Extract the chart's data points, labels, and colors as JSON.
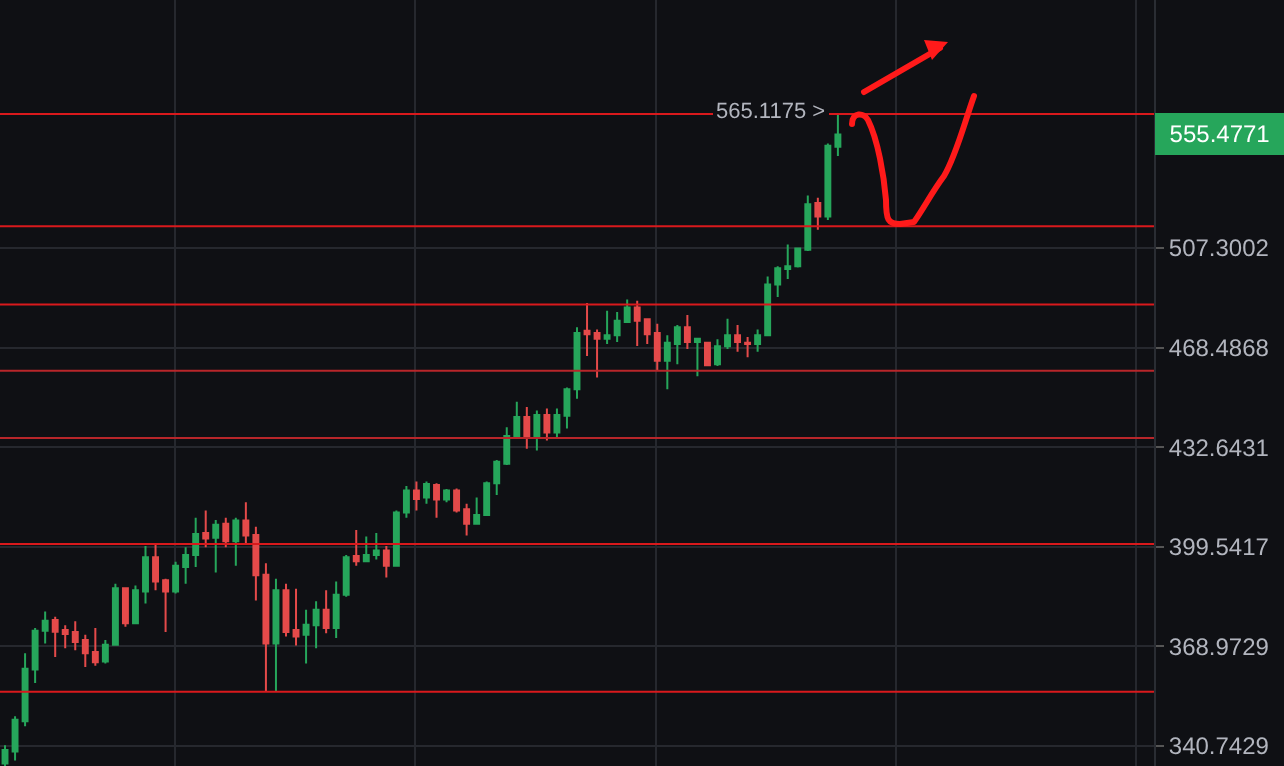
{
  "chart_data": {
    "type": "candlestick",
    "categories": [
      null,
      null,
      null,
      null,
      null,
      null,
      null,
      null,
      null,
      null,
      null,
      null,
      null,
      null,
      null,
      null,
      null,
      null,
      null,
      null,
      null,
      null,
      null,
      null,
      null,
      null,
      null,
      null,
      null,
      null,
      null,
      null,
      null,
      null,
      null,
      null,
      null,
      null,
      null,
      null,
      null,
      null,
      null,
      null,
      null,
      null,
      null,
      null,
      null,
      null,
      null,
      null,
      null,
      null,
      null,
      null,
      null,
      null,
      null,
      null,
      null,
      null,
      null,
      null,
      null,
      null,
      null,
      null,
      null,
      null,
      null,
      null,
      null,
      null,
      null,
      null,
      null,
      null,
      null,
      null,
      null,
      null,
      null,
      null,
      null,
      null,
      null,
      null,
      null,
      null,
      null,
      null,
      null,
      null,
      null,
      null,
      null,
      null,
      null,
      null,
      null,
      null,
      null,
      null,
      null,
      null,
      null,
      null,
      null,
      null,
      null,
      null,
      null,
      null,
      null
    ],
    "ohlc": [
      [
        336.0,
        340.9,
        335.1,
        339.6
      ],
      [
        339.2,
        348.9,
        336.8,
        347.9
      ],
      [
        347.5,
        366.9,
        346.1,
        362.4
      ],
      [
        362.2,
        374.4,
        358.3,
        373.6
      ],
      [
        373.6,
        379.4,
        369.8,
        376.6
      ],
      [
        376.8,
        377.8,
        365.8,
        373.3
      ],
      [
        373.8,
        375.2,
        368.4,
        372.6
      ],
      [
        373.2,
        376.4,
        367.8,
        370.2
      ],
      [
        370.8,
        372.4,
        362.9,
        366.9
      ],
      [
        367.3,
        374.4,
        363.3,
        364.3
      ],
      [
        364.5,
        370.8,
        363.9,
        369.4
      ],
      [
        369.4,
        387.9,
        369.2,
        386.5
      ],
      [
        386.5,
        386.8,
        374.8,
        375.8
      ],
      [
        375.8,
        387.3,
        375.8,
        385.9
      ],
      [
        385.5,
        399.8,
        381.8,
        396.2
      ],
      [
        396.2,
        400.5,
        385.9,
        388.6
      ],
      [
        389.0,
        389.4,
        373.2,
        385.5
      ],
      [
        385.5,
        394.8,
        384.9,
        393.5
      ],
      [
        393.1,
        399.4,
        387.9,
        396.9
      ],
      [
        396.9,
        408.9,
        393.1,
        403.6
      ],
      [
        403.9,
        411.3,
        399.4,
        402.2
      ],
      [
        402.4,
        408.2,
        391.4,
        406.6
      ],
      [
        406.9,
        408.9,
        399.4,
        401.3
      ],
      [
        401.3,
        408.9,
        393.5,
        408.0
      ],
      [
        408.0,
        414.0,
        400.4,
        403.1
      ],
      [
        403.3,
        406.0,
        382.7,
        390.5
      ],
      [
        390.7,
        394.3,
        355.8,
        369.8
      ],
      [
        369.8,
        389.4,
        355.8,
        385.9
      ],
      [
        385.9,
        387.9,
        371.9,
        373.2
      ],
      [
        373.8,
        386.3,
        369.2,
        371.9
      ],
      [
        372.4,
        379.9,
        363.9,
        375.4
      ],
      [
        375.2,
        382.5,
        368.4,
        379.9
      ],
      [
        379.9,
        385.9,
        372.8,
        374.4
      ],
      [
        374.4,
        388.6,
        371.4,
        384.5
      ],
      [
        384.5,
        396.9,
        383.9,
        396.2
      ],
      [
        396.6,
        404.9,
        393.5,
        394.9
      ],
      [
        394.9,
        402.8,
        394.9,
        396.9
      ],
      [
        396.9,
        403.9,
        395.5,
        398.3
      ],
      [
        398.3,
        399.8,
        389.8,
        393.5
      ],
      [
        393.5,
        411.3,
        393.5,
        410.6
      ],
      [
        410.6,
        419.4,
        408.9,
        417.9
      ],
      [
        417.9,
        420.9,
        411.3,
        415.1
      ],
      [
        415.6,
        420.9,
        413.5,
        420.1
      ],
      [
        419.7,
        420.3,
        408.9,
        414.9
      ],
      [
        414.9,
        418.4,
        414.0,
        417.9
      ],
      [
        417.9,
        418.6,
        410.6,
        411.3
      ],
      [
        411.7,
        413.5,
        403.1,
        406.9
      ],
      [
        406.9,
        415.6,
        406.9,
        409.8
      ],
      [
        409.8,
        420.9,
        409.5,
        420.3
      ],
      [
        420.3,
        428.2,
        416.4,
        427.6
      ],
      [
        426.9,
        439.6,
        426.5,
        436.5
      ],
      [
        436.1,
        448.6,
        435.6,
        443.2
      ],
      [
        443.2,
        446.7,
        432.1,
        436.1
      ],
      [
        436.1,
        445.5,
        431.5,
        443.9
      ],
      [
        443.9,
        446.2,
        434.9,
        437.7
      ],
      [
        437.7,
        446.2,
        435.6,
        443.9
      ],
      [
        443.6,
        453.8,
        439.1,
        453.1
      ],
      [
        453.1,
        476.1,
        449.7,
        474.0
      ],
      [
        474.8,
        485.5,
        465.3,
        473.5
      ],
      [
        474.0,
        475.3,
        457.4,
        471.8
      ],
      [
        471.8,
        482.5,
        469.8,
        473.1
      ],
      [
        473.1,
        482.0,
        470.6,
        478.6
      ],
      [
        478.1,
        486.8,
        478.1,
        483.7
      ],
      [
        483.7,
        486.3,
        469.1,
        478.6
      ],
      [
        479.2,
        479.2,
        469.8,
        473.5
      ],
      [
        474.0,
        477.5,
        459.8,
        463.6
      ],
      [
        463.6,
        473.1,
        453.1,
        470.3
      ],
      [
        469.8,
        477.0,
        462.3,
        476.1
      ],
      [
        476.1,
        480.8,
        467.9,
        470.6
      ],
      [
        470.6,
        471.8,
        457.9,
        471.8
      ],
      [
        470.3,
        470.3,
        461.9,
        461.9
      ],
      [
        462.3,
        471.6,
        461.6,
        469.0
      ],
      [
        469.0,
        479.4,
        467.9,
        473.1
      ],
      [
        473.1,
        477.0,
        466.9,
        470.6
      ],
      [
        470.3,
        472.4,
        464.9,
        469.8
      ],
      [
        469.8,
        475.3,
        466.9,
        473.1
      ],
      [
        473.1,
        495.9,
        472.8,
        492.7
      ],
      [
        492.7,
        499.9,
        487.8,
        499.1
      ],
      [
        498.8,
        508.7,
        494.9,
        499.9
      ],
      [
        499.9,
        507.4,
        499.4,
        507.1
      ],
      [
        506.6,
        529.0,
        506.1,
        525.3
      ],
      [
        525.9,
        528.1,
        514.7,
        520.2
      ],
      [
        520.2,
        551.5,
        518.8,
        550.5
      ],
      [
        550.0,
        565.1175,
        546.0,
        555.4771
      ],
      null,
      null,
      null,
      null,
      null,
      null,
      null,
      null,
      null,
      null,
      null,
      null,
      null,
      null,
      null,
      null,
      null,
      null,
      null,
      null,
      null,
      null,
      null,
      null,
      null,
      null,
      null,
      null,
      null,
      null,
      null
    ],
    "colors": [
      "#26a65b",
      "#26a65b",
      "#26a65b",
      "#26a65b",
      "#26a65b",
      "#e44a4a",
      "#e44a4a",
      "#e44a4a",
      "#e44a4a",
      "#e44a4a",
      "#26a65b",
      "#26a65b",
      "#e44a4a",
      "#26a65b",
      "#26a65b",
      "#e44a4a",
      "#e44a4a",
      "#26a65b",
      "#26a65b",
      "#26a65b",
      "#e44a4a",
      "#26a65b",
      "#e44a4a",
      "#26a65b",
      "#e44a4a",
      "#e44a4a",
      "#e44a4a",
      "#26a65b",
      "#e44a4a",
      "#e44a4a",
      "#26a65b",
      "#26a65b",
      "#e44a4a",
      "#26a65b",
      "#26a65b",
      "#e44a4a",
      "#26a65b",
      "#26a65b",
      "#e44a4a",
      "#26a65b",
      "#26a65b",
      "#e44a4a",
      "#26a65b",
      "#e44a4a",
      "#26a65b",
      "#e44a4a",
      "#e44a4a",
      "#26a65b",
      "#26a65b",
      "#26a65b",
      "#26a65b",
      "#26a65b",
      "#e44a4a",
      "#26a65b",
      "#e44a4a",
      "#26a65b",
      "#26a65b",
      "#26a65b",
      "#e44a4a",
      "#e44a4a",
      "#26a65b",
      "#26a65b",
      "#26a65b",
      "#e44a4a",
      "#e44a4a",
      "#e44a4a",
      "#26a65b",
      "#26a65b",
      "#e44a4a",
      "#26a65b",
      "#e44a4a",
      "#26a65b",
      "#26a65b",
      "#e44a4a",
      "#e44a4a",
      "#26a65b",
      "#26a65b",
      "#26a65b",
      "#26a65b",
      "#26a65b",
      "#26a65b",
      "#e44a4a",
      "#26a65b",
      "#26a65b",
      null,
      null,
      null,
      null,
      null,
      null,
      null,
      null,
      null,
      null,
      null,
      null,
      null,
      null,
      null,
      null,
      null,
      null,
      null,
      null,
      null,
      null,
      null,
      null,
      null,
      null,
      null,
      null,
      null,
      null,
      null
    ],
    "log": true,
    "ylim": [
      335.3,
      618.5
    ],
    "yticks": [
      340.7429,
      368.9729,
      399.5417,
      432.6431,
      468.4868,
      507.3002
    ],
    "grid": true,
    "tick_labels": "y",
    "ref_lines": [
      {
        "axis": "y",
        "value": 564.6,
        "color": "#d9191c"
      },
      {
        "axis": "y",
        "value": 516.2,
        "color": "#d9191c"
      },
      {
        "axis": "y",
        "value": 484.9,
        "color": "#d9191c"
      },
      {
        "axis": "y",
        "value": 459.9,
        "color": "#b8262a"
      },
      {
        "axis": "y",
        "value": 435.8,
        "color": "#b8262a"
      },
      {
        "axis": "y",
        "value": 400.4,
        "color": "#d9191c"
      },
      {
        "axis": "y",
        "value": 355.8,
        "color": "#d9191c"
      }
    ],
    "annotations": [
      "565.1175 >",
      "555.4771"
    ]
  }
}
